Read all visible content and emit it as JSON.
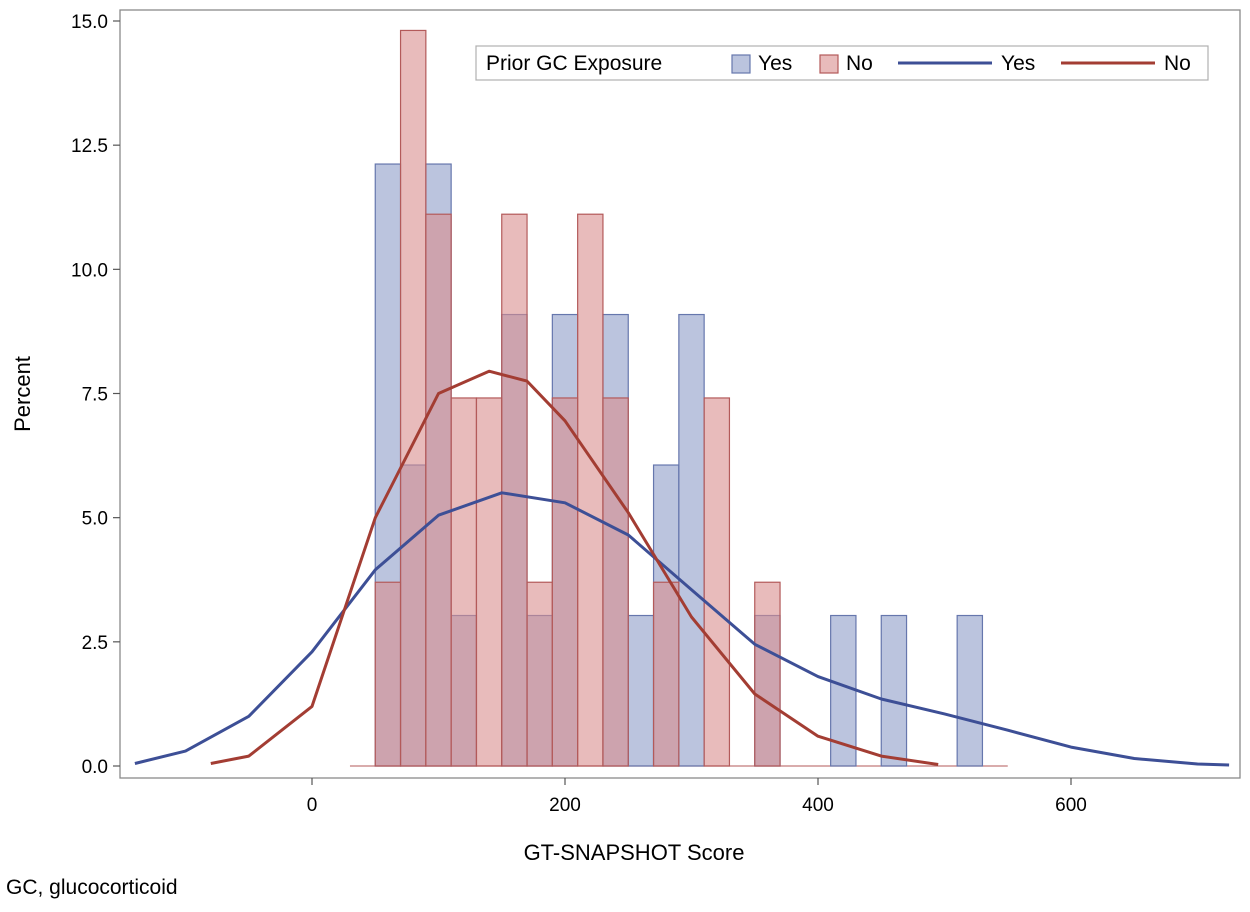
{
  "footnote": "GC, glucocorticoid",
  "chart_data": {
    "type": "bar",
    "subtype": "overlaid histogram with kernel density curves",
    "title": "",
    "xlabel": "GT-SNAPSHOT Score",
    "ylabel": "Percent",
    "xlim": [
      -140,
      730
    ],
    "ylim": [
      0,
      15
    ],
    "x_ticks": [
      0,
      200,
      400,
      600
    ],
    "x_tick_labels": [
      "0",
      "200",
      "400",
      "600"
    ],
    "y_ticks": [
      0,
      2.5,
      5,
      7.5,
      10,
      12.5,
      15
    ],
    "y_tick_labels": [
      "0.0",
      "2.5",
      "5.0",
      "7.5",
      "10.0",
      "12.5",
      "15.0"
    ],
    "grid": false,
    "bin_width": 20,
    "bin_centers": [
      40,
      60,
      80,
      100,
      120,
      140,
      160,
      180,
      200,
      220,
      240,
      260,
      280,
      300,
      320,
      340,
      360,
      380,
      400,
      420,
      440,
      460,
      480,
      500,
      520,
      540
    ],
    "series": [
      {
        "name": "Yes",
        "kind": "histogram",
        "color": "#8e9cc8",
        "edge": "#6677ad",
        "values": [
          0,
          12.12,
          6.06,
          12.12,
          3.03,
          0,
          9.09,
          3.03,
          9.09,
          0,
          9.09,
          3.03,
          6.06,
          9.09,
          0,
          0,
          3.03,
          0,
          0,
          3.03,
          0,
          3.03,
          0,
          0,
          3.03,
          0
        ]
      },
      {
        "name": "No",
        "kind": "histogram",
        "color": "#d98e8e",
        "edge": "#b35a5a",
        "values": [
          0,
          3.7,
          14.81,
          11.11,
          7.41,
          7.41,
          11.11,
          3.7,
          7.41,
          11.11,
          7.41,
          0,
          3.7,
          0,
          7.41,
          0,
          3.7,
          0,
          0,
          0,
          0,
          0,
          0,
          0,
          0,
          0
        ]
      },
      {
        "name": "Yes",
        "kind": "density",
        "color": "#3d4f96",
        "points": [
          [
            -140,
            0.05
          ],
          [
            -100,
            0.3
          ],
          [
            -50,
            1.0
          ],
          [
            0,
            2.3
          ],
          [
            50,
            3.95
          ],
          [
            100,
            5.05
          ],
          [
            150,
            5.5
          ],
          [
            200,
            5.3
          ],
          [
            250,
            4.65
          ],
          [
            300,
            3.55
          ],
          [
            350,
            2.45
          ],
          [
            400,
            1.8
          ],
          [
            450,
            1.35
          ],
          [
            500,
            1.05
          ],
          [
            550,
            0.72
          ],
          [
            600,
            0.38
          ],
          [
            650,
            0.15
          ],
          [
            700,
            0.04
          ],
          [
            725,
            0.02
          ]
        ]
      },
      {
        "name": "No",
        "kind": "density",
        "color": "#a33d33",
        "points": [
          [
            -80,
            0.05
          ],
          [
            -50,
            0.2
          ],
          [
            0,
            1.2
          ],
          [
            50,
            5.0
          ],
          [
            100,
            7.5
          ],
          [
            140,
            7.95
          ],
          [
            170,
            7.75
          ],
          [
            200,
            6.95
          ],
          [
            250,
            5.1
          ],
          [
            300,
            3.0
          ],
          [
            350,
            1.45
          ],
          [
            400,
            0.6
          ],
          [
            450,
            0.2
          ],
          [
            495,
            0.03
          ]
        ]
      }
    ],
    "legend": {
      "position": "top-right",
      "title": "Prior GC Exposure",
      "entries": [
        {
          "label": "Yes",
          "kind": "histogram",
          "color": "#8e9cc8"
        },
        {
          "label": "No",
          "kind": "histogram",
          "color": "#d98e8e"
        },
        {
          "label": "Yes",
          "kind": "density",
          "color": "#3d4f96"
        },
        {
          "label": "No",
          "kind": "density",
          "color": "#a33d33"
        }
      ]
    }
  }
}
